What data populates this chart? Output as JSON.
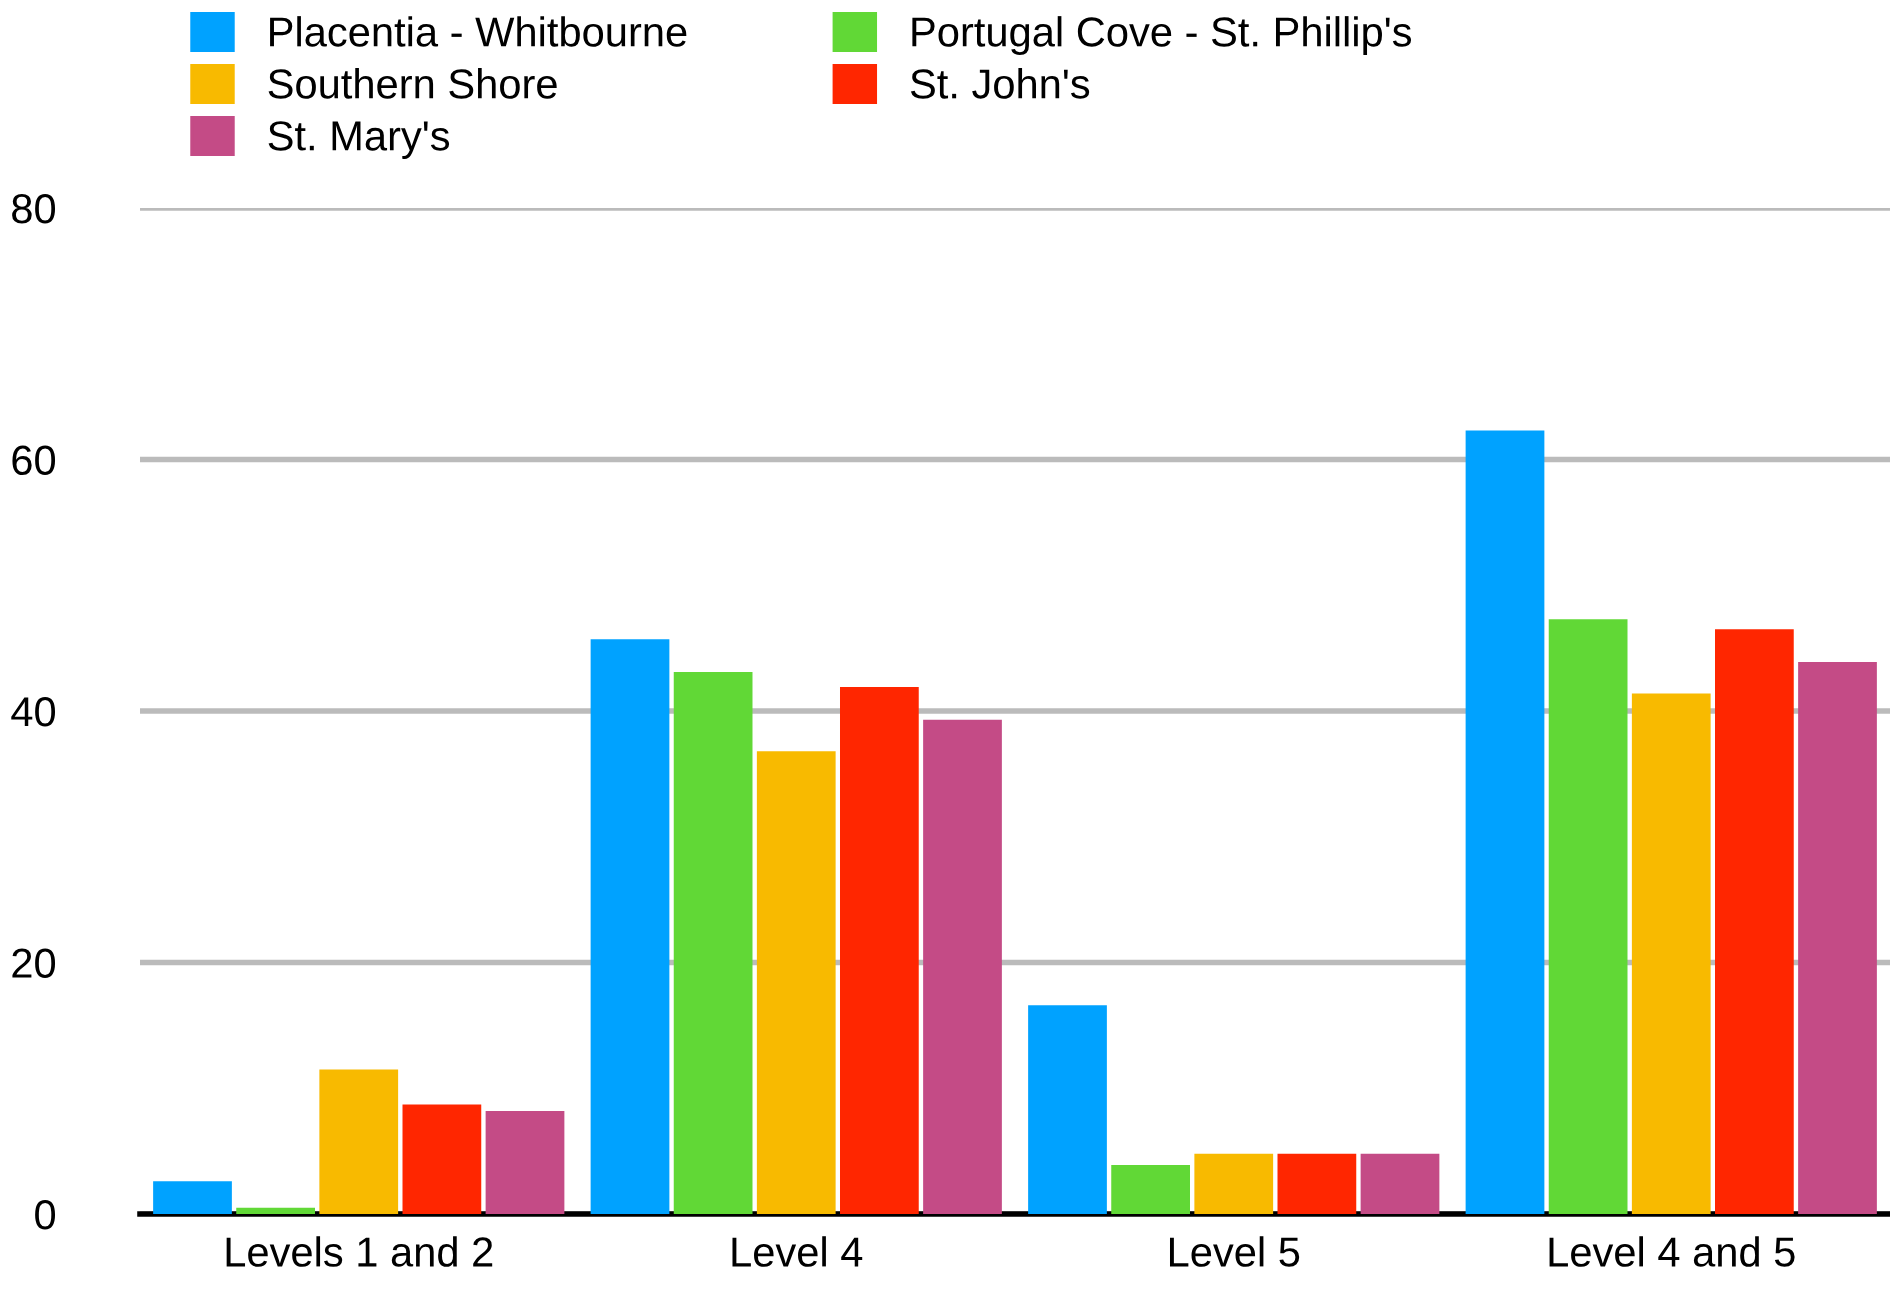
{
  "chart_data": {
    "type": "bar",
    "categories": [
      "Levels 1 and 2",
      "Level 4",
      "Level 5",
      "Level 4 and 5"
    ],
    "series": [
      {
        "name": "Placentia - Whitbourne",
        "color": "#00a2ff",
        "values": [
          2.6,
          45.7,
          16.6,
          62.3
        ]
      },
      {
        "name": "Portugal Cove - St. Phillip's",
        "color": "#61d836",
        "values": [
          0.5,
          43.1,
          3.9,
          47.3
        ]
      },
      {
        "name": "Southern Shore",
        "color": "#f8ba00",
        "values": [
          11.5,
          36.8,
          4.8,
          41.4
        ]
      },
      {
        "name": "St. John's",
        "color": "#ff2600",
        "values": [
          8.7,
          41.9,
          4.8,
          46.5
        ]
      },
      {
        "name": "St. Mary's",
        "color": "#c44b86",
        "values": [
          8.2,
          39.3,
          4.8,
          43.9
        ]
      }
    ],
    "ylim": [
      0,
      80
    ],
    "yticks": [
      0,
      20,
      40,
      60,
      80
    ],
    "grid": "y",
    "legend": "top left"
  }
}
